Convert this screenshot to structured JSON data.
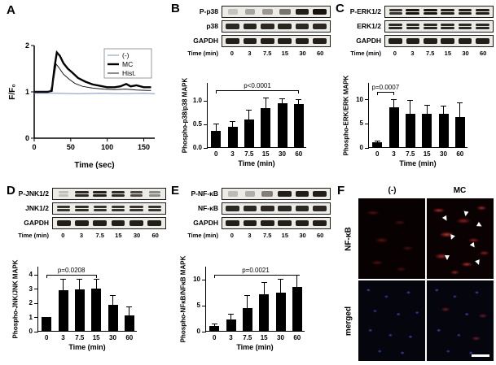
{
  "figure": {
    "panels": {
      "A": {
        "label": "A"
      },
      "B": {
        "label": "B"
      },
      "C": {
        "label": "C"
      },
      "D": {
        "label": "D"
      },
      "E": {
        "label": "E"
      },
      "F": {
        "label": "F"
      }
    }
  },
  "blots": [
    {
      "id": "B",
      "rows": [
        {
          "label": "P-p38",
          "doublet": false,
          "intensities": [
            0.18,
            0.32,
            0.38,
            0.55,
            0.95,
            1.0
          ]
        },
        {
          "label": "p38",
          "doublet": false,
          "intensities": [
            0.9,
            0.92,
            0.9,
            0.92,
            0.9,
            0.9
          ]
        },
        {
          "label": "GAPDH",
          "doublet": false,
          "intensities": [
            0.95,
            0.95,
            0.95,
            0.95,
            0.95,
            0.95
          ]
        }
      ],
      "time_label": "Time (min)",
      "time_points": [
        "0",
        "3",
        "7.5",
        "15",
        "30",
        "60"
      ]
    },
    {
      "id": "C",
      "rows": [
        {
          "label": "P-ERK1/2",
          "doublet": true,
          "intensities": [
            0.85,
            1.0,
            1.0,
            0.95,
            0.95,
            0.95
          ]
        },
        {
          "label": "ERK1/2",
          "doublet": true,
          "intensities": [
            0.9,
            0.9,
            0.9,
            0.9,
            0.9,
            0.9
          ]
        },
        {
          "label": "GAPDH",
          "doublet": false,
          "intensities": [
            0.95,
            0.95,
            0.95,
            0.95,
            0.95,
            0.95
          ]
        }
      ],
      "time_label": "Time (min)",
      "time_points": [
        "0",
        "3",
        "7.5",
        "15",
        "30",
        "60"
      ]
    },
    {
      "id": "D",
      "rows": [
        {
          "label": "P-JNK1/2",
          "doublet": true,
          "intensities": [
            0.2,
            0.9,
            0.95,
            0.9,
            0.75,
            0.45
          ]
        },
        {
          "label": "JNK1/2",
          "doublet": true,
          "intensities": [
            0.85,
            0.88,
            0.85,
            0.85,
            0.85,
            0.85
          ]
        },
        {
          "label": "GAPDH",
          "doublet": false,
          "intensities": [
            0.95,
            0.95,
            0.95,
            0.95,
            0.95,
            0.95
          ]
        }
      ],
      "time_label": "Time (min)",
      "time_points": [
        "0",
        "3",
        "7.5",
        "15",
        "30",
        "60"
      ]
    },
    {
      "id": "E",
      "rows": [
        {
          "label": "P-NF-κB",
          "doublet": false,
          "intensities": [
            0.22,
            0.28,
            0.5,
            0.95,
            0.95,
            0.95
          ]
        },
        {
          "label": "NF-κB",
          "doublet": false,
          "intensities": [
            0.9,
            0.9,
            0.9,
            0.9,
            0.9,
            0.9
          ]
        },
        {
          "label": "GAPDH",
          "doublet": false,
          "intensities": [
            0.95,
            0.95,
            0.95,
            0.95,
            0.95,
            0.95
          ]
        }
      ],
      "time_label": "Time (min)",
      "time_points": [
        "0",
        "3",
        "7.5",
        "15",
        "30",
        "60"
      ]
    }
  ],
  "chart_data": [
    {
      "id": "A",
      "type": "line",
      "title": "",
      "xlabel": "Time (sec)",
      "ylabel": "F/F₀",
      "xlim": [
        0,
        165
      ],
      "ylim": [
        0,
        2
      ],
      "xticks": [
        0,
        50,
        100,
        150
      ],
      "yticks": [
        0,
        1,
        2
      ],
      "legend_position": "top-right",
      "series": [
        {
          "name": "(-)",
          "color": "#7b8fd4",
          "width": 1,
          "points": [
            [
              0,
              0.97
            ],
            [
              30,
              0.97
            ],
            [
              60,
              0.96
            ],
            [
              90,
              0.97
            ],
            [
              120,
              0.96
            ],
            [
              150,
              0.97
            ],
            [
              165,
              0.96
            ]
          ]
        },
        {
          "name": "MC",
          "color": "#000000",
          "width": 2.4,
          "points": [
            [
              0,
              1
            ],
            [
              18,
              1
            ],
            [
              24,
              1.02
            ],
            [
              28,
              1.55
            ],
            [
              31,
              1.85
            ],
            [
              35,
              1.78
            ],
            [
              40,
              1.62
            ],
            [
              46,
              1.5
            ],
            [
              52,
              1.42
            ],
            [
              60,
              1.3
            ],
            [
              70,
              1.22
            ],
            [
              80,
              1.16
            ],
            [
              90,
              1.13
            ],
            [
              100,
              1.1
            ],
            [
              110,
              1.1
            ],
            [
              118,
              1.12
            ],
            [
              126,
              1.17
            ],
            [
              132,
              1.12
            ],
            [
              140,
              1.14
            ],
            [
              150,
              1.1
            ],
            [
              160,
              1.1
            ]
          ]
        },
        {
          "name": "Hist.",
          "color": "#1a1a1a",
          "width": 1,
          "points": [
            [
              0,
              1
            ],
            [
              22,
              1
            ],
            [
              27,
              1.3
            ],
            [
              30,
              1.6
            ],
            [
              34,
              1.52
            ],
            [
              40,
              1.38
            ],
            [
              48,
              1.27
            ],
            [
              56,
              1.18
            ],
            [
              66,
              1.12
            ],
            [
              80,
              1.08
            ],
            [
              95,
              1.06
            ],
            [
              110,
              1.05
            ],
            [
              125,
              1.06
            ],
            [
              140,
              1.04
            ],
            [
              155,
              1.03
            ],
            [
              160,
              1.03
            ]
          ]
        }
      ]
    },
    {
      "id": "B",
      "type": "bar",
      "ylabel": "Phospho-p38/p38 MAPK",
      "xlabel": "Time (min)",
      "categories": [
        "0",
        "3",
        "7.5",
        "15",
        "30",
        "60"
      ],
      "values": [
        0.35,
        0.43,
        0.58,
        0.82,
        0.93,
        0.92
      ],
      "errors": [
        0.13,
        0.1,
        0.2,
        0.22,
        0.08,
        0.08
      ],
      "ylim": [
        0,
        1.38
      ],
      "yticks": [
        0,
        0.5,
        1.0
      ],
      "ytick_labels": [
        "0.0",
        "0.5",
        "1.0"
      ],
      "bracket": {
        "text": "p<0.0001",
        "from": 0,
        "to": 5,
        "y": 1.22
      }
    },
    {
      "id": "C",
      "type": "bar",
      "ylabel": "Phospho-ERK/ERK MAPK",
      "xlabel": "Time (min)",
      "categories": [
        "0",
        "3",
        "7.5",
        "15",
        "30",
        "60"
      ],
      "values": [
        1.0,
        8.3,
        7.0,
        6.9,
        6.9,
        6.3
      ],
      "errors": [
        0.15,
        1.5,
        2.6,
        1.7,
        1.5,
        2.9
      ],
      "ylim": [
        0,
        13.5
      ],
      "yticks": [
        0,
        5,
        10
      ],
      "ytick_labels": [
        "0",
        "5",
        "10"
      ],
      "bracket": {
        "text": "p=0.0007",
        "from": 0,
        "to": 1,
        "y": 11.6
      }
    },
    {
      "id": "D",
      "type": "bar",
      "ylabel": "Phospho-JNK/JNK MAPK",
      "xlabel": "Time (min)",
      "categories": [
        "0",
        "3",
        "7.5",
        "15",
        "30",
        "60"
      ],
      "values": [
        1.0,
        2.85,
        2.95,
        3.0,
        1.85,
        1.1
      ],
      "errors": [
        0,
        0.8,
        0.7,
        0.65,
        0.6,
        0.55
      ],
      "ylim": [
        0,
        4.6
      ],
      "yticks": [
        0,
        1,
        2,
        3,
        4
      ],
      "ytick_labels": [
        "0",
        "1",
        "2",
        "3",
        "4"
      ],
      "bracket": {
        "text": "p=0.0208",
        "from": 0,
        "to": 3,
        "y": 4.0
      }
    },
    {
      "id": "E",
      "type": "bar",
      "ylabel": "Phospho-NFκB/NFκB MAPK",
      "xlabel": "Time (min)",
      "categories": [
        "0",
        "3",
        "7.5",
        "15",
        "30",
        "60"
      ],
      "values": [
        1.0,
        2.2,
        4.3,
        7.0,
        7.4,
        8.4
      ],
      "errors": [
        0.25,
        0.9,
        2.4,
        2.2,
        2.4,
        2.2
      ],
      "ylim": [
        0,
        12.5
      ],
      "yticks": [
        0,
        5,
        10
      ],
      "ytick_labels": [
        "0",
        "5",
        "10"
      ],
      "bracket": {
        "text": "p=0.0021",
        "from": 0,
        "to": 5,
        "y": 11.0
      }
    }
  ],
  "panel_f": {
    "columns": [
      "(-)",
      "MC"
    ],
    "rows": [
      "NF-κB",
      "merged"
    ],
    "stain_colors": {
      "nfkb_red": "#c22424",
      "nuclei_blue": "#3a3ad0"
    }
  }
}
